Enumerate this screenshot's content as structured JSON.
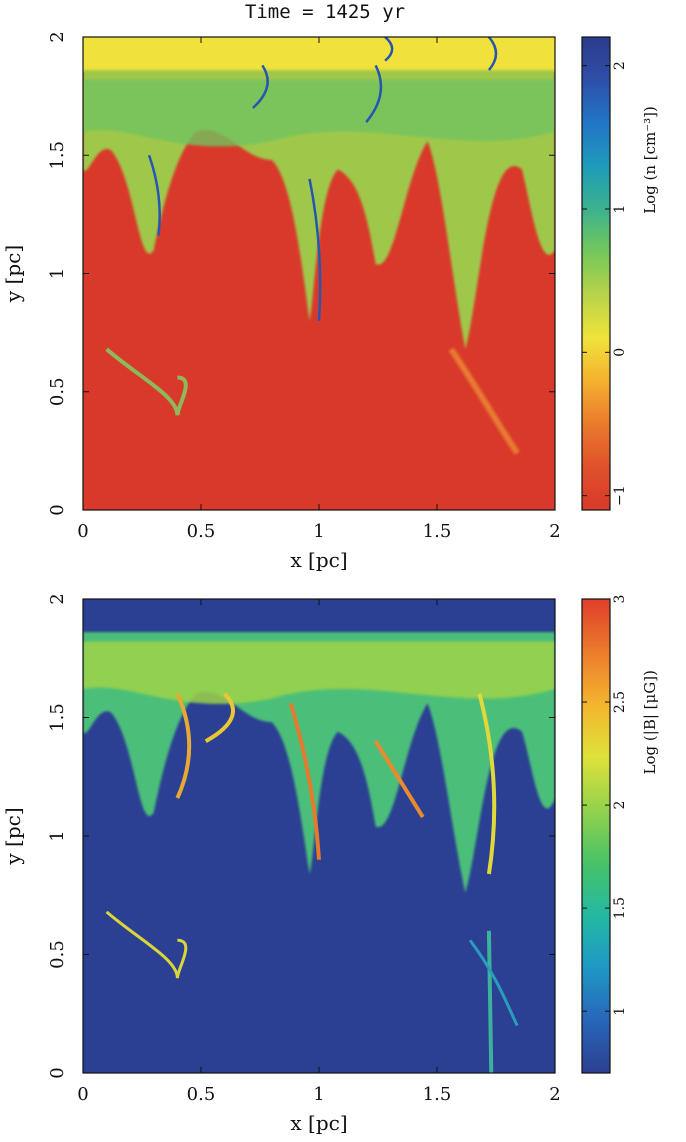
{
  "figure": {
    "title": "Time = 1425 yr"
  },
  "colors": {
    "density_colormap": [
      "#d9392a",
      "#e0512c",
      "#ea7a2d",
      "#f4b12f",
      "#efe33a",
      "#b8d34a",
      "#74c75b",
      "#3cb28d",
      "#1e9bb9",
      "#2276c6",
      "#2e4fa9",
      "#2b3b8c"
    ],
    "field_colormap": [
      "#2c3f92",
      "#2866b8",
      "#1f98c6",
      "#24b9a1",
      "#48c266",
      "#95d24b",
      "#dfe23a",
      "#f3b42e",
      "#ec7b2c",
      "#df3f2a"
    ],
    "dense_gas": "#d9392a",
    "diffuse_field": "#2b3f93"
  },
  "chart_data": [
    {
      "type": "heatmap",
      "name": "density",
      "title": "Time = 1425 yr",
      "xlabel": "x [pc]",
      "ylabel": "y [pc]",
      "xlim": [
        0,
        2
      ],
      "ylim": [
        0,
        2
      ],
      "x_ticks": [
        0,
        0.5,
        1,
        1.5,
        2
      ],
      "y_ticks": [
        0,
        0.5,
        1,
        1.5,
        2
      ],
      "x_tick_labels": [
        "0",
        "0.5",
        "1",
        "1.5",
        "2"
      ],
      "y_tick_labels": [
        "0",
        "0.5",
        "1",
        "1.5",
        "2"
      ],
      "colorbar": {
        "label": "Log (n [cm⁻³])",
        "range": [
          -1.1,
          2.2
        ],
        "ticks": [
          -1,
          0,
          1,
          2
        ],
        "tick_labels": [
          "−1",
          "0",
          "1",
          "2"
        ]
      }
    },
    {
      "type": "heatmap",
      "name": "magnetic_field",
      "xlabel": "x [pc]",
      "ylabel": "y [pc]",
      "xlim": [
        0,
        2
      ],
      "ylim": [
        0,
        2
      ],
      "x_ticks": [
        0,
        0.5,
        1,
        1.5,
        2
      ],
      "y_ticks": [
        0,
        0.5,
        1,
        1.5,
        2
      ],
      "x_tick_labels": [
        "0",
        "0.5",
        "1",
        "1.5",
        "2"
      ],
      "y_tick_labels": [
        "0",
        "0.5",
        "1",
        "1.5",
        "2"
      ],
      "colorbar": {
        "label": "Log (|B| [μG])",
        "range": [
          0.7,
          3.0
        ],
        "ticks": [
          1,
          1.5,
          2,
          2.5,
          3
        ],
        "tick_labels": [
          "1",
          "1.5",
          "2",
          "2.5",
          "3"
        ]
      }
    }
  ]
}
